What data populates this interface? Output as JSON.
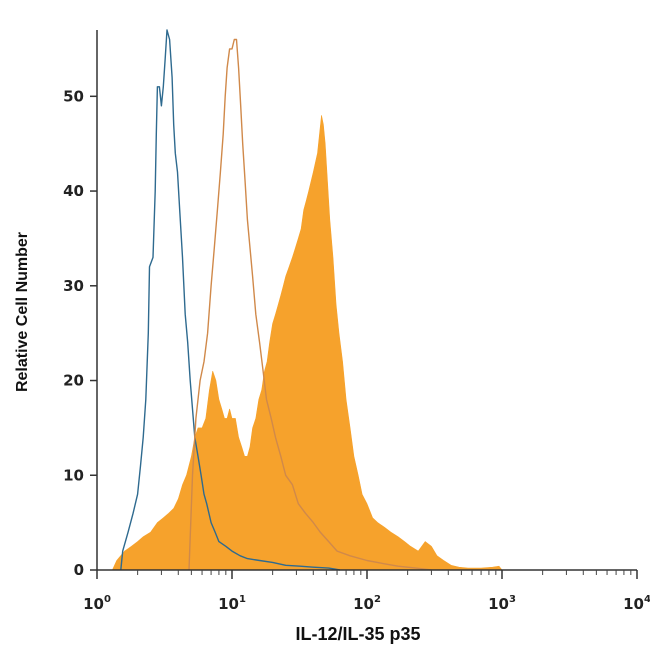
{
  "chart_data": {
    "type": "histogram",
    "xlabel": "IL-12/IL-35 p35",
    "ylabel": "Relative Cell Number",
    "x_scale": "log",
    "xlim": [
      1,
      10000
    ],
    "ylim": [
      0,
      57
    ],
    "x_ticks": [
      {
        "base": "10",
        "exp": "0"
      },
      {
        "base": "10",
        "exp": "1"
      },
      {
        "base": "10",
        "exp": "2"
      },
      {
        "base": "10",
        "exp": "3"
      },
      {
        "base": "10",
        "exp": "4"
      }
    ],
    "y_ticks": [
      "0",
      "10",
      "20",
      "30",
      "40",
      "50"
    ],
    "grid": false,
    "legend": "none",
    "series": [
      {
        "style": "outline",
        "color": "#2e6a8f",
        "points": [
          [
            1.5,
            0
          ],
          [
            1.55,
            2
          ],
          [
            1.7,
            4
          ],
          [
            1.85,
            6
          ],
          [
            2.0,
            8
          ],
          [
            2.1,
            11
          ],
          [
            2.2,
            14
          ],
          [
            2.3,
            18
          ],
          [
            2.4,
            25
          ],
          [
            2.45,
            32
          ],
          [
            2.6,
            33
          ],
          [
            2.7,
            40
          ],
          [
            2.75,
            46
          ],
          [
            2.8,
            51
          ],
          [
            2.9,
            51
          ],
          [
            3.0,
            49
          ],
          [
            3.1,
            51
          ],
          [
            3.2,
            54
          ],
          [
            3.3,
            57
          ],
          [
            3.45,
            56
          ],
          [
            3.6,
            52
          ],
          [
            3.7,
            47
          ],
          [
            3.8,
            44
          ],
          [
            3.95,
            42
          ],
          [
            4.1,
            38
          ],
          [
            4.3,
            33
          ],
          [
            4.5,
            27
          ],
          [
            4.7,
            24
          ],
          [
            4.9,
            20
          ],
          [
            5.1,
            17
          ],
          [
            5.3,
            14
          ],
          [
            5.6,
            12
          ],
          [
            5.9,
            10
          ],
          [
            6.2,
            8
          ],
          [
            6.5,
            7
          ],
          [
            7.0,
            5
          ],
          [
            7.5,
            4
          ],
          [
            8.0,
            3
          ],
          [
            9.0,
            2.5
          ],
          [
            10,
            2
          ],
          [
            11.5,
            1.5
          ],
          [
            13,
            1.2
          ],
          [
            16,
            1
          ],
          [
            20,
            0.8
          ],
          [
            25,
            0.5
          ],
          [
            32,
            0.4
          ],
          [
            40,
            0.3
          ],
          [
            52,
            0.2
          ],
          [
            63,
            0
          ]
        ]
      },
      {
        "style": "outline",
        "color": "#d0894a",
        "points": [
          [
            4.8,
            0
          ],
          [
            5.1,
            10
          ],
          [
            5.4,
            16
          ],
          [
            5.8,
            20
          ],
          [
            6.2,
            22
          ],
          [
            6.6,
            25
          ],
          [
            7.0,
            30
          ],
          [
            7.4,
            34
          ],
          [
            7.8,
            38
          ],
          [
            8.2,
            42
          ],
          [
            8.6,
            46
          ],
          [
            8.9,
            50
          ],
          [
            9.2,
            53
          ],
          [
            9.6,
            55
          ],
          [
            10.0,
            55
          ],
          [
            10.4,
            56
          ],
          [
            10.8,
            56
          ],
          [
            11.2,
            53
          ],
          [
            11.6,
            49
          ],
          [
            12.0,
            45
          ],
          [
            12.5,
            41
          ],
          [
            13.0,
            37
          ],
          [
            13.6,
            34
          ],
          [
            14.2,
            31
          ],
          [
            15.0,
            27
          ],
          [
            16.0,
            24
          ],
          [
            17.0,
            21
          ],
          [
            18.0,
            18
          ],
          [
            19.5,
            16
          ],
          [
            21,
            14
          ],
          [
            23,
            12
          ],
          [
            25,
            10
          ],
          [
            28,
            9
          ],
          [
            31,
            7
          ],
          [
            35,
            6
          ],
          [
            40,
            5
          ],
          [
            45,
            4
          ],
          [
            52,
            3
          ],
          [
            60,
            2
          ],
          [
            75,
            1.5
          ],
          [
            100,
            1
          ],
          [
            130,
            0.7
          ],
          [
            170,
            0.4
          ],
          [
            230,
            0.2
          ],
          [
            300,
            0
          ]
        ]
      },
      {
        "style": "filled",
        "color": "#f6a22c",
        "points": [
          [
            1.3,
            0
          ],
          [
            1.4,
            1
          ],
          [
            1.6,
            2
          ],
          [
            1.8,
            2.5
          ],
          [
            2.0,
            3
          ],
          [
            2.2,
            3.5
          ],
          [
            2.5,
            4
          ],
          [
            2.8,
            5
          ],
          [
            3.1,
            5.5
          ],
          [
            3.4,
            6
          ],
          [
            3.7,
            6.5
          ],
          [
            4.0,
            7.5
          ],
          [
            4.3,
            9
          ],
          [
            4.6,
            10
          ],
          [
            5.0,
            12
          ],
          [
            5.3,
            14
          ],
          [
            5.6,
            15
          ],
          [
            6.0,
            15
          ],
          [
            6.4,
            16
          ],
          [
            6.8,
            19
          ],
          [
            7.2,
            21
          ],
          [
            7.6,
            20
          ],
          [
            8.0,
            18
          ],
          [
            8.4,
            17
          ],
          [
            8.8,
            16
          ],
          [
            9.2,
            16
          ],
          [
            9.6,
            17
          ],
          [
            10.0,
            16
          ],
          [
            10.6,
            16
          ],
          [
            11.2,
            14
          ],
          [
            11.8,
            13
          ],
          [
            12.4,
            12
          ],
          [
            13.0,
            12
          ],
          [
            13.6,
            13
          ],
          [
            14.2,
            15
          ],
          [
            15.0,
            16
          ],
          [
            15.8,
            18
          ],
          [
            16.6,
            19
          ],
          [
            17.4,
            21
          ],
          [
            18.2,
            22
          ],
          [
            19.0,
            24
          ],
          [
            20.0,
            26
          ],
          [
            21.0,
            27
          ],
          [
            22.0,
            28
          ],
          [
            23.0,
            29
          ],
          [
            24.0,
            30
          ],
          [
            25.0,
            31
          ],
          [
            26.5,
            32
          ],
          [
            28.0,
            33
          ],
          [
            29.5,
            34
          ],
          [
            31.0,
            35
          ],
          [
            32.5,
            36
          ],
          [
            34.0,
            38
          ],
          [
            35.5,
            39
          ],
          [
            37.0,
            40
          ],
          [
            38.5,
            41
          ],
          [
            40.0,
            42
          ],
          [
            41.5,
            43
          ],
          [
            43.0,
            44
          ],
          [
            44.5,
            46
          ],
          [
            46.0,
            48
          ],
          [
            47.5,
            47
          ],
          [
            49.0,
            45
          ],
          [
            51.0,
            41
          ],
          [
            53.0,
            37
          ],
          [
            56.0,
            33
          ],
          [
            59.0,
            28
          ],
          [
            62.0,
            25
          ],
          [
            66.0,
            22
          ],
          [
            70.0,
            18
          ],
          [
            75.0,
            15
          ],
          [
            80.0,
            12
          ],
          [
            86.0,
            10
          ],
          [
            92.0,
            8
          ],
          [
            100,
            7
          ],
          [
            110,
            5.5
          ],
          [
            120,
            5
          ],
          [
            135,
            4.5
          ],
          [
            150,
            4
          ],
          [
            170,
            3.5
          ],
          [
            190,
            3
          ],
          [
            210,
            2.5
          ],
          [
            240,
            2
          ],
          [
            270,
            3
          ],
          [
            300,
            2.5
          ],
          [
            330,
            1.5
          ],
          [
            370,
            1
          ],
          [
            420,
            0.5
          ],
          [
            480,
            0.3
          ],
          [
            560,
            0.2
          ],
          [
            700,
            0.2
          ],
          [
            850,
            0.3
          ],
          [
            950,
            0.4
          ],
          [
            1000,
            0
          ]
        ]
      }
    ]
  }
}
